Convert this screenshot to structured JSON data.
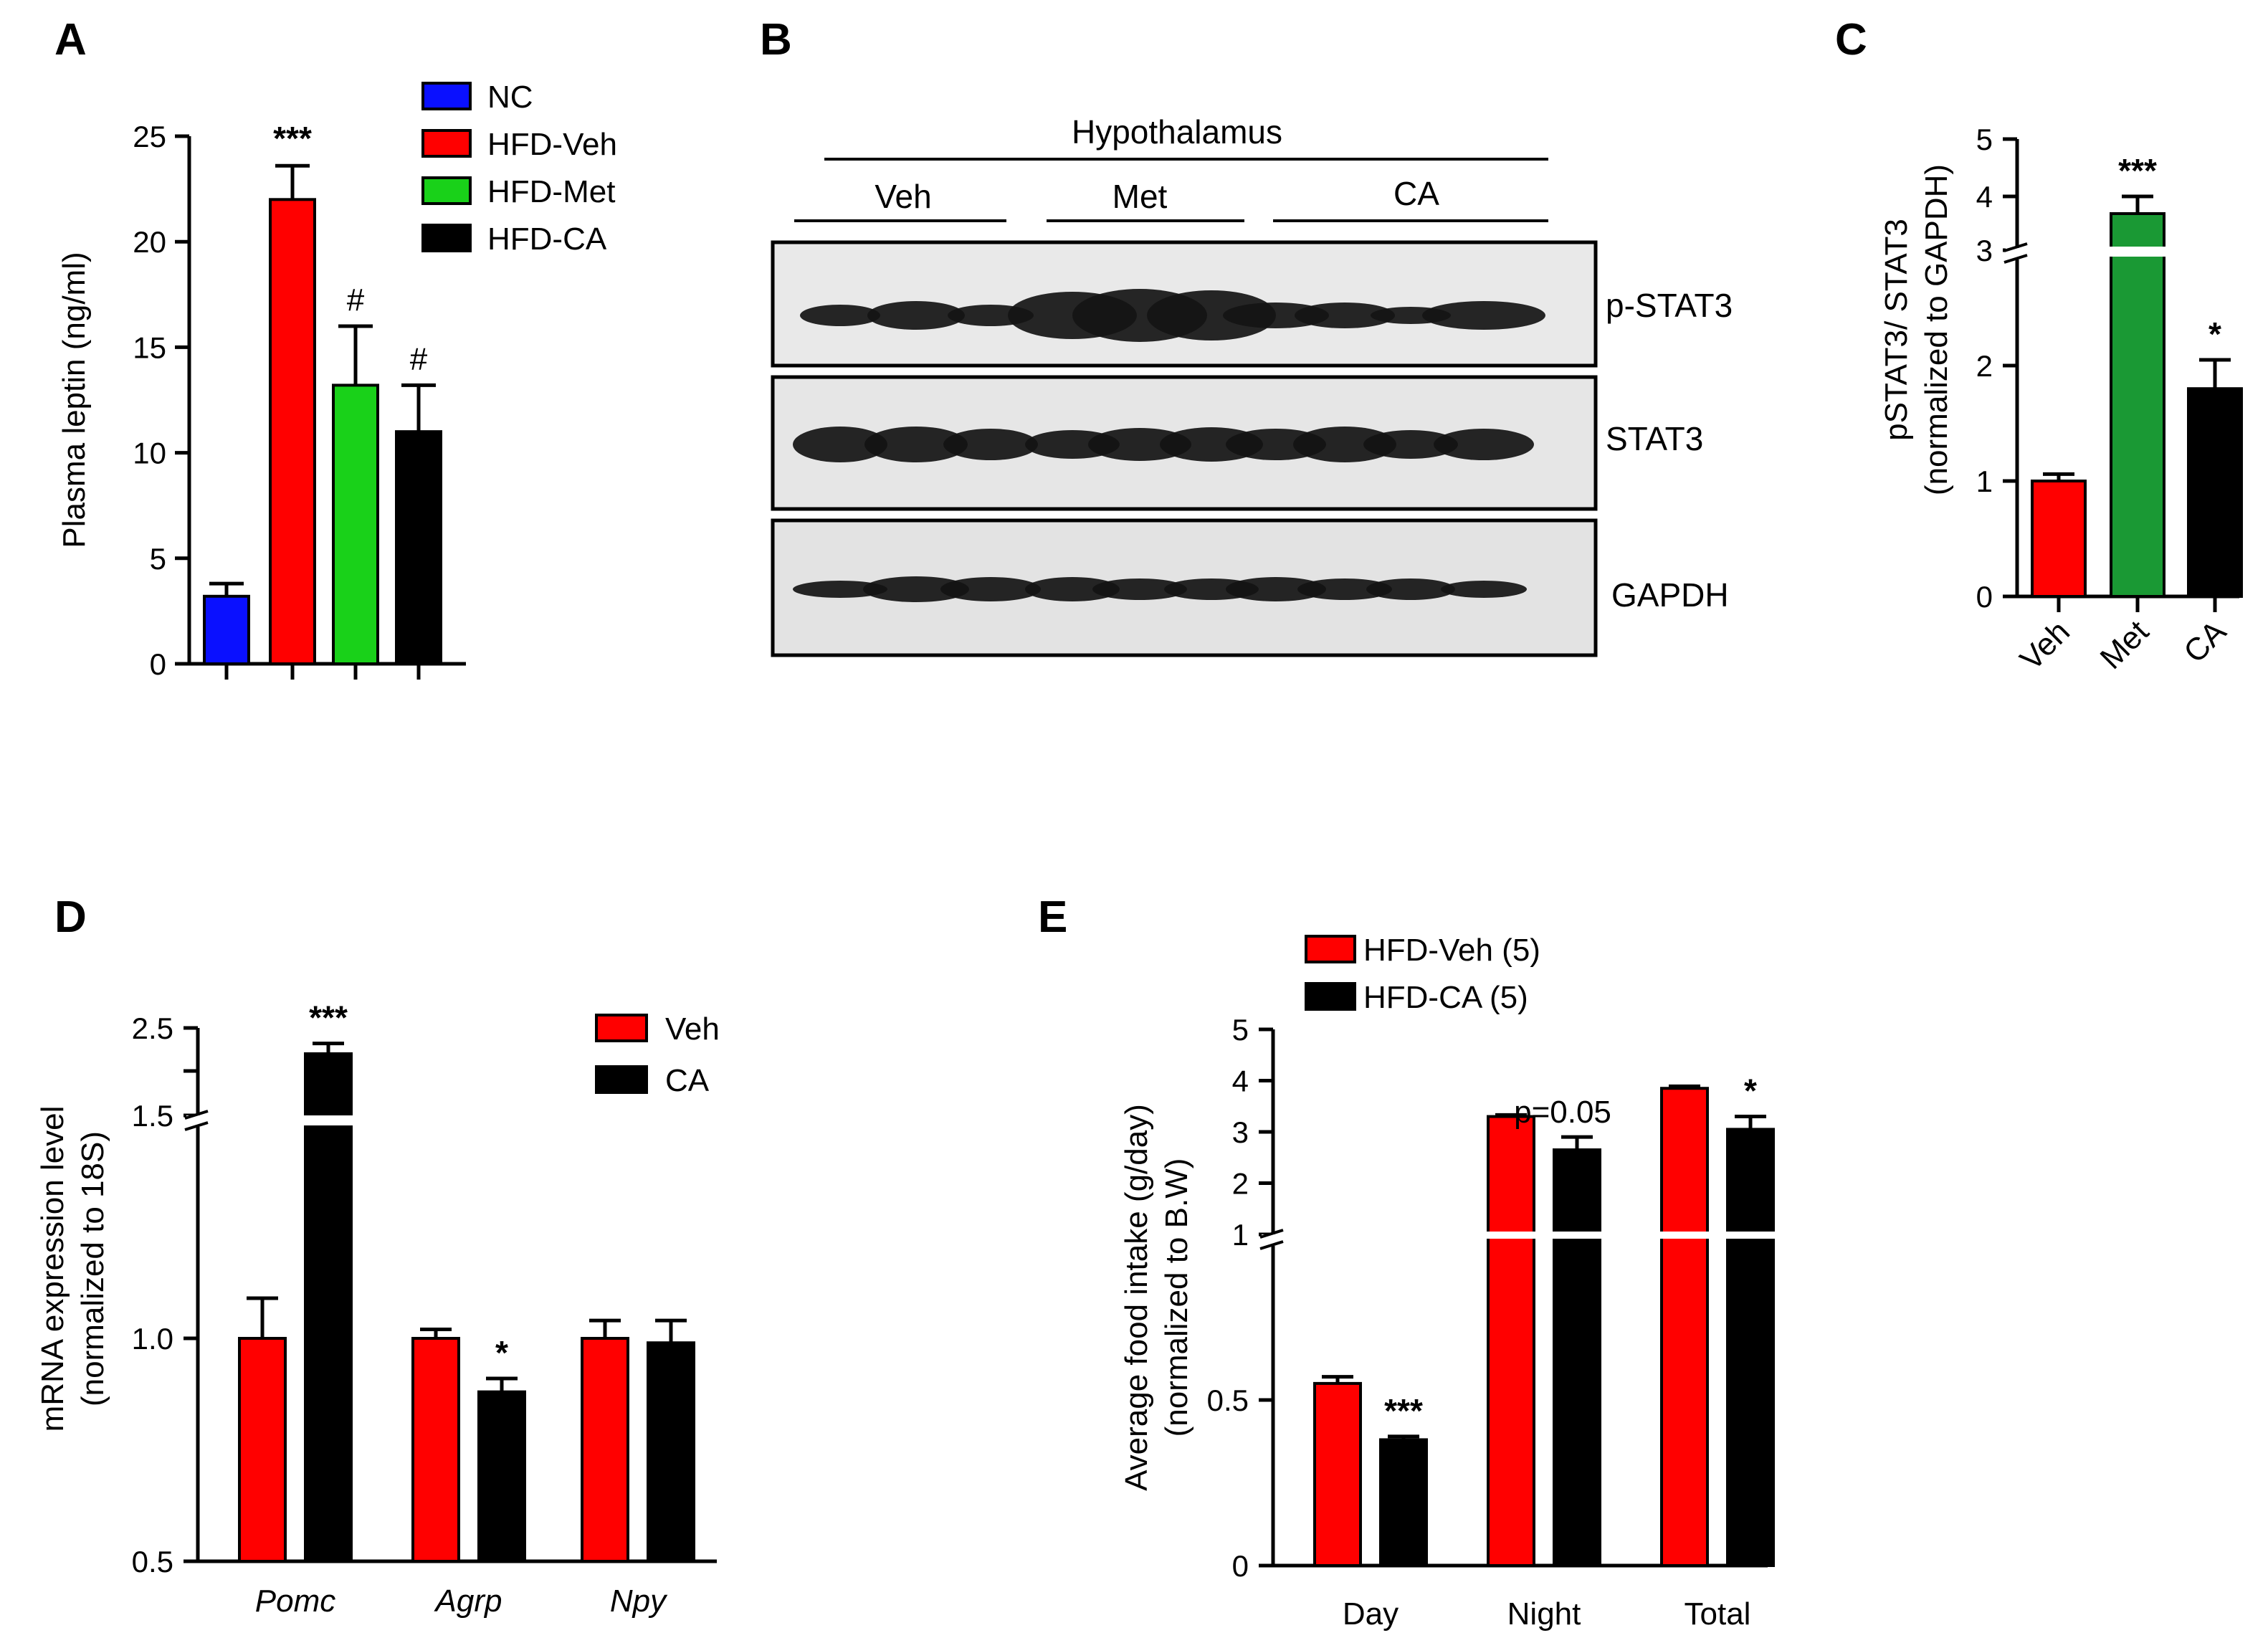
{
  "panels": {
    "A": {
      "letter": "A"
    },
    "B": {
      "letter": "B"
    },
    "C": {
      "letter": "C"
    },
    "D": {
      "letter": "D"
    },
    "E": {
      "letter": "E"
    }
  },
  "chart_data": [
    {
      "id": "A",
      "type": "bar",
      "categories": [
        "NC",
        "HFD-Veh",
        "HFD-Met",
        "HFD-CA"
      ],
      "values": [
        3.2,
        22.0,
        13.2,
        11.0
      ],
      "errors": [
        0.6,
        1.6,
        2.8,
        2.2
      ],
      "colors": [
        "#0a10ff",
        "#ff0000",
        "#19d119",
        "#000000"
      ],
      "annotations": [
        "",
        "***",
        "#",
        "#"
      ],
      "ylabel": "Plasma leptin (ng/ml)",
      "ylim": [
        0,
        25
      ],
      "yticks": [
        "0",
        "5",
        "10",
        "15",
        "20",
        "25"
      ],
      "legend": [
        "NC",
        "HFD-Veh",
        "HFD-Met",
        "HFD-CA"
      ],
      "legend_position": "top-right"
    },
    {
      "id": "C",
      "type": "bar",
      "categories": [
        "Veh",
        "Met",
        "CA"
      ],
      "values": [
        1.0,
        3.7,
        1.8
      ],
      "errors": [
        0.06,
        0.3,
        0.25
      ],
      "colors": [
        "#ff0000",
        "#1a9934",
        "#000000"
      ],
      "annotations": [
        "",
        "***",
        "*"
      ],
      "ylabel_lines": [
        "pSTAT3/ STAT3",
        "(normalized to GAPDH)"
      ],
      "yticks": [
        "0",
        "1",
        "2",
        "3",
        "4",
        "5"
      ],
      "ylim": [
        0,
        5
      ],
      "axis_break": [
        2.9,
        3.4
      ]
    },
    {
      "id": "D",
      "type": "bar",
      "categories": [
        "Pomc",
        "Agrp",
        "Npy"
      ],
      "series": [
        {
          "name": "Veh",
          "color": "#ff0000",
          "values": [
            1.0,
            1.0,
            1.0
          ],
          "errors": [
            0.09,
            0.02,
            0.04
          ]
        },
        {
          "name": "CA",
          "color": "#000000",
          "values": [
            2.2,
            0.88,
            0.99
          ],
          "errors": [
            0.12,
            0.03,
            0.05
          ]
        }
      ],
      "annotations": {
        "CA": [
          "***",
          "*",
          ""
        ]
      },
      "ylabel_lines": [
        "mRNA expression level",
        "(normalized to 18S)"
      ],
      "yticks": [
        "0.5",
        "1.0",
        "1.5",
        "2.5"
      ],
      "ylim": [
        0.5,
        2.5
      ],
      "axis_break": [
        1.5,
        2.0
      ]
    },
    {
      "id": "E",
      "type": "bar",
      "categories": [
        "Day",
        "Night",
        "Total"
      ],
      "series": [
        {
          "name": "HFD-Veh (5)",
          "color": "#ff0000",
          "values": [
            0.55,
            3.3,
            3.85
          ],
          "errors": [
            0.02,
            0.03,
            0.04
          ]
        },
        {
          "name": "HFD-CA (5)",
          "color": "#000000",
          "values": [
            0.38,
            2.65,
            3.05
          ],
          "errors": [
            0.01,
            0.25,
            0.25
          ]
        }
      ],
      "annotations": {
        "HFD-CA (5)": [
          "***",
          "p=0.05",
          "*"
        ]
      },
      "ylabel_lines": [
        "Average food intake (g/day)",
        "(normalized to B.W)"
      ],
      "yticks": [
        "0",
        "0.5",
        "1",
        "2",
        "3",
        "4",
        "5"
      ],
      "ylim": [
        0,
        5
      ],
      "axis_break": [
        1,
        1
      ]
    }
  ],
  "blot": {
    "tissue": "Hypothalamus",
    "groups": [
      "Veh",
      "Met",
      "CA"
    ],
    "rows": [
      "p-STAT3",
      "STAT3",
      "GAPDH"
    ]
  }
}
